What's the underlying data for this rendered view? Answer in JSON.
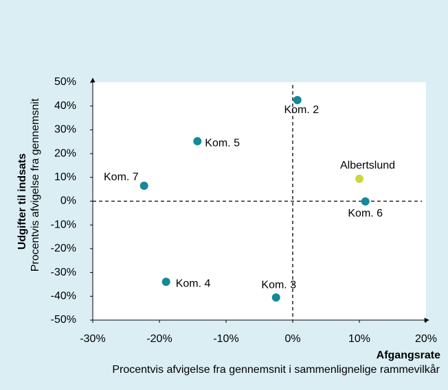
{
  "chart_data": {
    "type": "scatter",
    "x_label": "Afgangsrate",
    "x_sublabel": "Procentvis afvigelse fra gennemsnit i sammenlignelige rammevilkår",
    "y_label": "Udgifter til indsats",
    "y_sublabel": "Procentvis afvigelse fra gennemsnit",
    "labels": [
      "Kom. 2",
      "Kom. 5",
      "Kom. 7",
      "Albertslund",
      "Kom. 6",
      "Kom. 4",
      "Kom. 3"
    ],
    "x": [
      0.7,
      -14.3,
      -22.3,
      10,
      10.9,
      -19,
      -2.5
    ],
    "values": [
      42.5,
      25.2,
      6.5,
      9.4,
      -0.1,
      -33.9,
      -40.5
    ],
    "colors": [
      "#138a96",
      "#138a96",
      "#138a96",
      "#c8d93a",
      "#138a96",
      "#138a96",
      "#138a96"
    ],
    "xlim": [
      -30,
      20
    ],
    "xticks": [
      {
        "value": -30,
        "label": "-30%"
      },
      {
        "value": -20,
        "label": "-20%"
      },
      {
        "value": -10,
        "label": "-10%"
      },
      {
        "value": 0,
        "label": "0%"
      },
      {
        "value": 10,
        "label": "10%"
      },
      {
        "value": 20,
        "label": "20%"
      }
    ],
    "ylim": [
      -50,
      50
    ],
    "yticks": [
      {
        "value": -50,
        "label": "-50%"
      },
      {
        "value": -40,
        "label": "-40%"
      },
      {
        "value": -30,
        "label": "-30%"
      },
      {
        "value": -20,
        "label": "-20%"
      },
      {
        "value": -10,
        "label": "-10%"
      },
      {
        "value": 0,
        "label": "0%"
      },
      {
        "value": 10,
        "label": "10%"
      },
      {
        "value": 20,
        "label": "20%"
      },
      {
        "value": 30,
        "label": "30%"
      },
      {
        "value": 40,
        "label": "40%"
      },
      {
        "value": 50,
        "label": "50%"
      }
    ]
  }
}
